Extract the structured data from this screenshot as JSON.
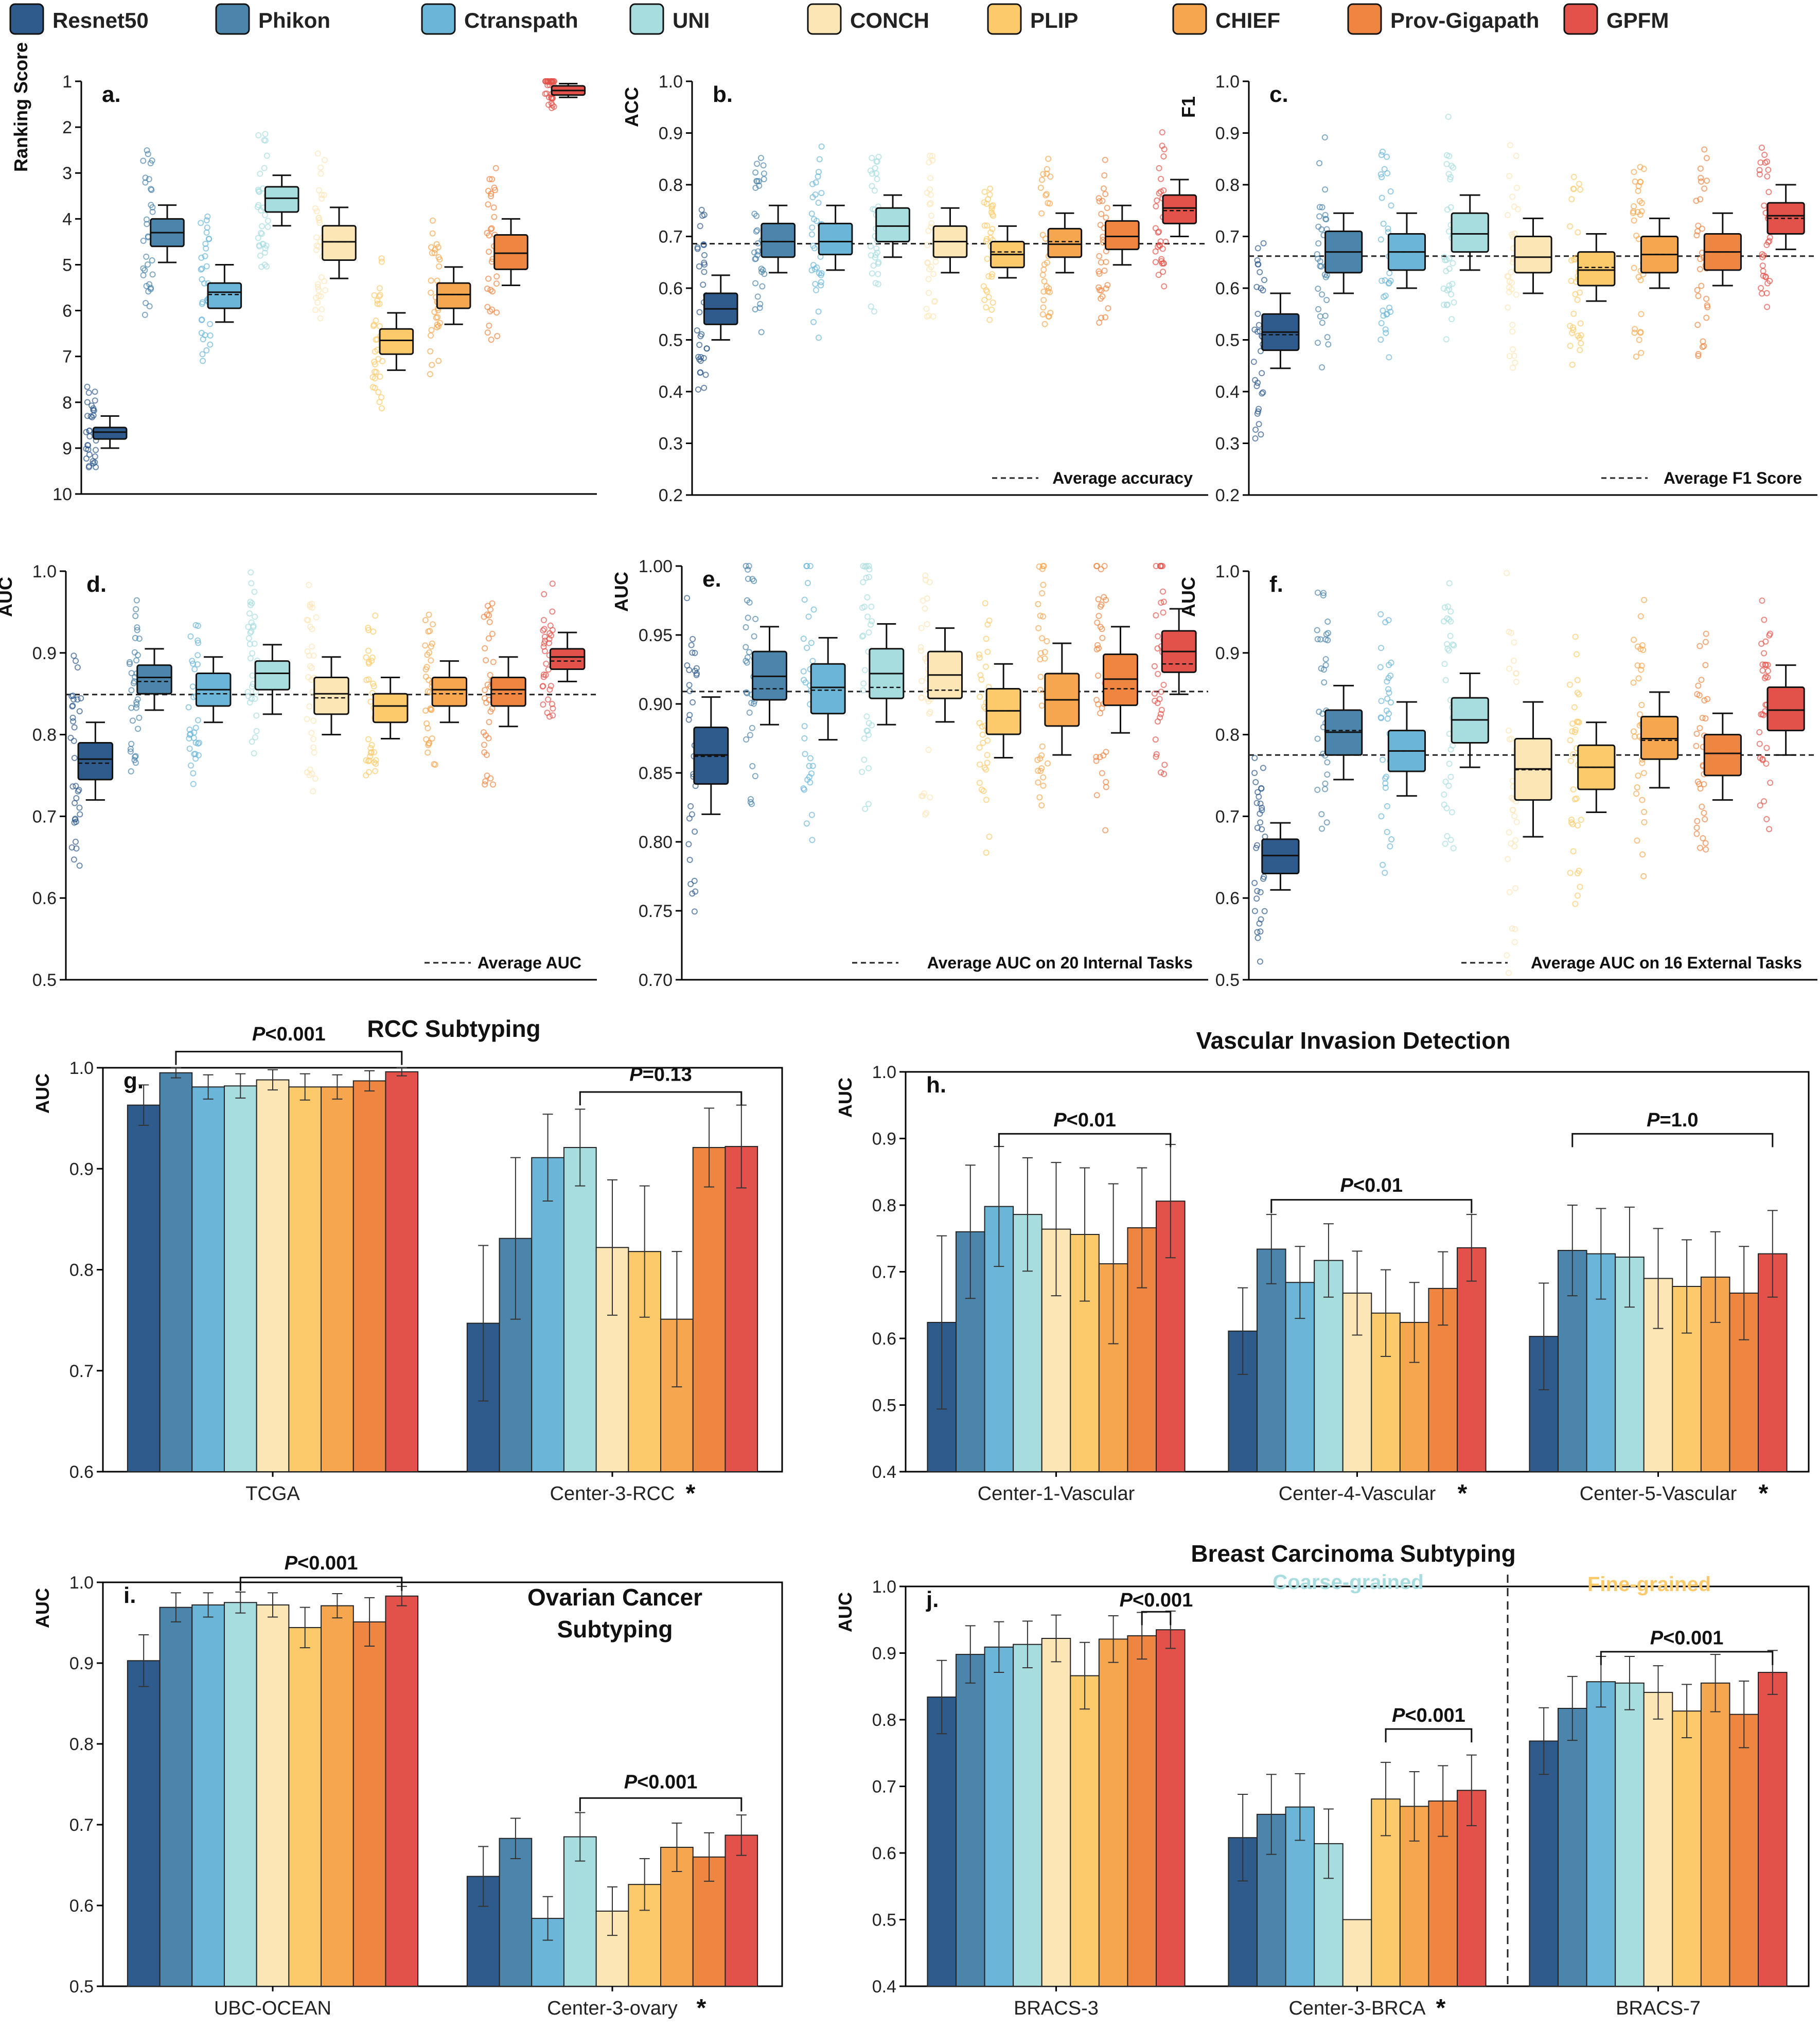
{
  "legend": [
    {
      "name": "Resnet50",
      "color": "#2e5a8c"
    },
    {
      "name": "Phikon",
      "color": "#4b85ab"
    },
    {
      "name": "Ctranspath",
      "color": "#6bb6d8"
    },
    {
      "name": "UNI",
      "color": "#a8dde0"
    },
    {
      "name": "CONCH",
      "color": "#fde6b6"
    },
    {
      "name": "PLIP",
      "color": "#fcca6a"
    },
    {
      "name": "CHIEF",
      "color": "#f6a64f"
    },
    {
      "name": "Prov-Gigapath",
      "color": "#ee8540"
    },
    {
      "name": "GPFM",
      "color": "#e3524a"
    }
  ],
  "chart_data": [
    {
      "id": "a",
      "type": "box",
      "letter": "a.",
      "ylabel": "Ranking Score",
      "ylim": [
        10,
        1
      ],
      "inverted": true,
      "yticks": [
        1,
        2,
        3,
        4,
        5,
        6,
        7,
        8,
        9,
        10
      ],
      "boxes": [
        [
          8.3,
          8.55,
          8.65,
          8.8,
          9.0
        ],
        [
          3.7,
          4.0,
          4.3,
          4.6,
          4.95
        ],
        [
          5.0,
          5.4,
          5.6,
          5.95,
          6.25
        ],
        [
          3.05,
          3.3,
          3.55,
          3.85,
          4.15
        ],
        [
          3.75,
          4.15,
          4.5,
          4.9,
          5.3
        ],
        [
          6.05,
          6.4,
          6.65,
          6.95,
          7.3
        ],
        [
          5.05,
          5.4,
          5.65,
          5.95,
          6.3
        ],
        [
          4.0,
          4.35,
          4.75,
          5.1,
          5.45
        ],
        [
          1.05,
          1.1,
          1.2,
          1.3,
          1.35
        ]
      ],
      "means": [
        8.65,
        4.3,
        5.65,
        3.55,
        4.5,
        6.65,
        5.65,
        4.75,
        1.2
      ]
    },
    {
      "id": "b",
      "type": "box",
      "letter": "b.",
      "ylabel": "ACC",
      "ylim": [
        0.2,
        1.0
      ],
      "yticks": [
        0.2,
        0.3,
        0.4,
        0.5,
        0.6,
        0.7,
        0.8,
        0.9,
        1.0
      ],
      "ref": 0.686,
      "ref_label": "Average accuracy",
      "boxes": [
        [
          0.5,
          0.53,
          0.56,
          0.59,
          0.625
        ],
        [
          0.63,
          0.66,
          0.69,
          0.725,
          0.76
        ],
        [
          0.635,
          0.665,
          0.69,
          0.725,
          0.76
        ],
        [
          0.66,
          0.69,
          0.72,
          0.755,
          0.78
        ],
        [
          0.63,
          0.66,
          0.69,
          0.72,
          0.755
        ],
        [
          0.62,
          0.64,
          0.665,
          0.69,
          0.72
        ],
        [
          0.63,
          0.66,
          0.685,
          0.715,
          0.745
        ],
        [
          0.645,
          0.675,
          0.7,
          0.73,
          0.76
        ],
        [
          0.7,
          0.725,
          0.755,
          0.78,
          0.81
        ]
      ],
      "means": [
        0.56,
        0.69,
        0.69,
        0.72,
        0.69,
        0.67,
        0.69,
        0.7,
        0.75
      ]
    },
    {
      "id": "c",
      "type": "box",
      "letter": "c.",
      "ylabel": "F1",
      "ylim": [
        0.2,
        1.0
      ],
      "yticks": [
        0.2,
        0.3,
        0.4,
        0.5,
        0.6,
        0.7,
        0.8,
        0.9,
        1.0
      ],
      "ref": 0.662,
      "ref_label": "Average F1 Score",
      "boxes": [
        [
          0.445,
          0.48,
          0.515,
          0.55,
          0.59
        ],
        [
          0.59,
          0.63,
          0.67,
          0.71,
          0.745
        ],
        [
          0.6,
          0.635,
          0.67,
          0.705,
          0.745
        ],
        [
          0.635,
          0.67,
          0.705,
          0.745,
          0.78
        ],
        [
          0.59,
          0.63,
          0.66,
          0.7,
          0.735
        ],
        [
          0.575,
          0.605,
          0.635,
          0.67,
          0.705
        ],
        [
          0.6,
          0.63,
          0.665,
          0.7,
          0.735
        ],
        [
          0.605,
          0.635,
          0.67,
          0.705,
          0.745
        ],
        [
          0.675,
          0.705,
          0.74,
          0.765,
          0.8
        ]
      ],
      "means": [
        0.51,
        0.67,
        0.67,
        0.705,
        0.66,
        0.64,
        0.665,
        0.67,
        0.735
      ]
    },
    {
      "id": "d",
      "type": "box",
      "letter": "d.",
      "ylabel": "AUC",
      "ylim": [
        0.5,
        1.0
      ],
      "yticks": [
        0.5,
        0.6,
        0.7,
        0.8,
        0.9,
        1.0
      ],
      "ref": 0.849,
      "ref_label": "Average AUC",
      "boxes": [
        [
          0.72,
          0.745,
          0.77,
          0.79,
          0.815
        ],
        [
          0.83,
          0.85,
          0.87,
          0.885,
          0.905
        ],
        [
          0.815,
          0.835,
          0.855,
          0.875,
          0.895
        ],
        [
          0.825,
          0.855,
          0.875,
          0.89,
          0.91
        ],
        [
          0.8,
          0.825,
          0.85,
          0.87,
          0.895
        ],
        [
          0.795,
          0.815,
          0.835,
          0.85,
          0.87
        ],
        [
          0.815,
          0.835,
          0.855,
          0.87,
          0.89
        ],
        [
          0.81,
          0.835,
          0.855,
          0.87,
          0.895
        ],
        [
          0.865,
          0.88,
          0.895,
          0.905,
          0.925
        ]
      ],
      "means": [
        0.765,
        0.865,
        0.85,
        0.875,
        0.845,
        0.835,
        0.85,
        0.85,
        0.89
      ]
    },
    {
      "id": "e",
      "type": "box",
      "letter": "e.",
      "ylabel": "AUC",
      "ylim": [
        0.7,
        1.0
      ],
      "yticks": [
        0.7,
        0.75,
        0.8,
        0.85,
        0.9,
        0.95,
        1.0
      ],
      "ref": 0.909,
      "ref_label": "Average AUC on 20 Internal Tasks",
      "boxes": [
        [
          0.82,
          0.842,
          0.863,
          0.883,
          0.905
        ],
        [
          0.885,
          0.903,
          0.92,
          0.938,
          0.956
        ],
        [
          0.874,
          0.893,
          0.912,
          0.929,
          0.948
        ],
        [
          0.885,
          0.904,
          0.922,
          0.94,
          0.958
        ],
        [
          0.887,
          0.904,
          0.921,
          0.938,
          0.955
        ],
        [
          0.861,
          0.878,
          0.895,
          0.911,
          0.929
        ],
        [
          0.863,
          0.884,
          0.903,
          0.922,
          0.944
        ],
        [
          0.879,
          0.899,
          0.918,
          0.936,
          0.956
        ],
        [
          0.907,
          0.923,
          0.938,
          0.953,
          0.969
        ]
      ],
      "means": [
        0.862,
        0.911,
        0.91,
        0.912,
        0.91,
        0.895,
        0.903,
        0.911,
        0.929
      ]
    },
    {
      "id": "f",
      "type": "box",
      "letter": "f.",
      "ylabel": "AUC",
      "ylim": [
        0.5,
        1.0
      ],
      "yticks": [
        0.5,
        0.6,
        0.7,
        0.8,
        0.9,
        1.0
      ],
      "ref": 0.775,
      "ref_label": "Average AUC on 16 External Tasks",
      "boxes": [
        [
          0.61,
          0.63,
          0.652,
          0.672,
          0.692
        ],
        [
          0.745,
          0.775,
          0.803,
          0.83,
          0.86
        ],
        [
          0.725,
          0.755,
          0.78,
          0.805,
          0.84
        ],
        [
          0.76,
          0.79,
          0.818,
          0.845,
          0.875
        ],
        [
          0.675,
          0.72,
          0.758,
          0.795,
          0.84
        ],
        [
          0.705,
          0.733,
          0.76,
          0.787,
          0.815
        ],
        [
          0.735,
          0.77,
          0.795,
          0.822,
          0.852
        ],
        [
          0.72,
          0.75,
          0.777,
          0.8,
          0.826
        ],
        [
          0.775,
          0.805,
          0.83,
          0.858,
          0.885
        ]
      ],
      "means": [
        0.652,
        0.805,
        0.78,
        0.818,
        0.757,
        0.76,
        0.793,
        0.777,
        0.83
      ]
    },
    {
      "id": "g",
      "type": "bar",
      "letter": "g.",
      "title": "RCC Subtyping",
      "ylabel": "AUC",
      "ylim": [
        0.6,
        1.0
      ],
      "yticks": [
        0.6,
        0.7,
        0.8,
        0.9,
        1.0
      ],
      "groups": [
        {
          "name": "TCGA",
          "star": false,
          "values": [
            0.963,
            0.995,
            0.981,
            0.982,
            0.988,
            0.981,
            0.981,
            0.987,
            0.996
          ],
          "errors": [
            0.02,
            0.005,
            0.012,
            0.012,
            0.01,
            0.013,
            0.012,
            0.01,
            0.004
          ]
        },
        {
          "name": "Center-3-RCC",
          "star": true,
          "values": [
            0.747,
            0.831,
            0.911,
            0.921,
            0.822,
            0.818,
            0.751,
            0.921,
            0.922
          ],
          "errors": [
            0.077,
            0.08,
            0.043,
            0.038,
            0.067,
            0.065,
            0.067,
            0.039,
            0.041
          ]
        }
      ],
      "brackets": [
        {
          "group": 0,
          "from": 1,
          "to": 8,
          "label": "P<0.001",
          "y": 1.016,
          "text_y": 1.027
        },
        {
          "group": 1,
          "from": 3,
          "to": 8,
          "label": "P=0.13",
          "y": 0.976,
          "text_y": 0.987
        }
      ]
    },
    {
      "id": "h",
      "type": "bar",
      "letter": "h.",
      "title": "Vascular Invasion Detection",
      "ylabel": "AUC",
      "ylim": [
        0.4,
        1.0
      ],
      "yticks": [
        0.4,
        0.5,
        0.6,
        0.7,
        0.8,
        0.9,
        1.0
      ],
      "groups": [
        {
          "name": "Center-1-Vascular",
          "star": false,
          "values": [
            0.624,
            0.76,
            0.798,
            0.786,
            0.764,
            0.756,
            0.712,
            0.766,
            0.806
          ],
          "errors": [
            0.13,
            0.1,
            0.09,
            0.085,
            0.1,
            0.1,
            0.12,
            0.09,
            0.085
          ]
        },
        {
          "name": "Center-4-Vascular",
          "star": true,
          "values": [
            0.611,
            0.734,
            0.684,
            0.717,
            0.668,
            0.638,
            0.624,
            0.675,
            0.736
          ],
          "errors": [
            0.065,
            0.052,
            0.054,
            0.055,
            0.063,
            0.065,
            0.06,
            0.055,
            0.05
          ]
        },
        {
          "name": "Center-5-Vascular",
          "star": true,
          "values": [
            0.603,
            0.732,
            0.727,
            0.722,
            0.69,
            0.678,
            0.692,
            0.668,
            0.727
          ],
          "errors": [
            0.08,
            0.068,
            0.068,
            0.075,
            0.075,
            0.07,
            0.068,
            0.07,
            0.065
          ]
        }
      ],
      "brackets": [
        {
          "group": 0,
          "from": 2,
          "to": 8,
          "label": "P<0.01",
          "y": 0.907,
          "text_y": 0.918
        },
        {
          "group": 1,
          "from": 1,
          "to": 8,
          "label": "P<0.01",
          "y": 0.808,
          "text_y": 0.82
        },
        {
          "group": 2,
          "from": 1,
          "to": 8,
          "label": "P=1.0",
          "y": 0.907,
          "text_y": 0.918
        }
      ]
    },
    {
      "id": "i",
      "type": "bar",
      "letter": "i.",
      "title": "Ovarian Cancer Subtyping",
      "ylabel": "AUC",
      "ylim": [
        0.5,
        1.0
      ],
      "yticks": [
        0.5,
        0.6,
        0.7,
        0.8,
        0.9,
        1.0
      ],
      "groups": [
        {
          "name": "UBC-OCEAN",
          "star": false,
          "values": [
            0.903,
            0.969,
            0.972,
            0.975,
            0.972,
            0.944,
            0.971,
            0.951,
            0.983
          ],
          "errors": [
            0.032,
            0.018,
            0.015,
            0.013,
            0.015,
            0.025,
            0.015,
            0.03,
            0.012
          ]
        },
        {
          "name": "Center-3-ovary",
          "star": true,
          "values": [
            0.636,
            0.683,
            0.584,
            0.685,
            0.593,
            0.626,
            0.672,
            0.66,
            0.687
          ],
          "errors": [
            0.037,
            0.025,
            0.027,
            0.03,
            0.03,
            0.032,
            0.03,
            0.03,
            0.025
          ]
        }
      ],
      "brackets": [
        {
          "group": 0,
          "from": 3,
          "to": 8,
          "label": "P<0.001",
          "y": 1.006,
          "text_y": 1.016
        },
        {
          "group": 1,
          "from": 3,
          "to": 8,
          "label": "P<0.001",
          "y": 0.733,
          "text_y": 0.745
        }
      ]
    },
    {
      "id": "j",
      "type": "bar",
      "letter": "j.",
      "title": "Breast Carcinoma Subtyping",
      "ylabel": "AUC",
      "ylim": [
        0.4,
        1.0
      ],
      "yticks": [
        0.4,
        0.5,
        0.6,
        0.7,
        0.8,
        0.9,
        1.0
      ],
      "sub_left": "Coarse-grained",
      "sub_right": "Fine-grained",
      "groups": [
        {
          "name": "BRACS-3",
          "star": false,
          "values": [
            0.834,
            0.898,
            0.909,
            0.913,
            0.922,
            0.866,
            0.921,
            0.926,
            0.935
          ],
          "errors": [
            0.055,
            0.043,
            0.038,
            0.035,
            0.035,
            0.05,
            0.035,
            0.035,
            0.028
          ]
        },
        {
          "name": "Center-3-BRCA",
          "star": true,
          "values": [
            0.623,
            0.658,
            0.669,
            0.614,
            0.5,
            0.681,
            0.67,
            0.678,
            0.694
          ],
          "errors": [
            0.065,
            0.06,
            0.05,
            0.052,
            0.0,
            0.055,
            0.052,
            0.053,
            0.053
          ]
        },
        {
          "name": "BRACS-7",
          "star": false,
          "values": [
            0.768,
            0.817,
            0.857,
            0.855,
            0.841,
            0.813,
            0.855,
            0.808,
            0.871
          ],
          "errors": [
            0.05,
            0.048,
            0.038,
            0.04,
            0.04,
            0.04,
            0.043,
            0.05,
            0.033
          ]
        }
      ],
      "brackets": [
        {
          "group": 0,
          "from": 7,
          "to": 8,
          "label": "P<0.001",
          "y": 0.962,
          "text_y": 0.97
        },
        {
          "group": 1,
          "from": 5,
          "to": 8,
          "label": "P<0.001",
          "y": 0.786,
          "text_y": 0.797
        },
        {
          "group": 2,
          "from": 2,
          "to": 8,
          "label": "P<0.001",
          "y": 0.902,
          "text_y": 0.913
        }
      ]
    }
  ]
}
